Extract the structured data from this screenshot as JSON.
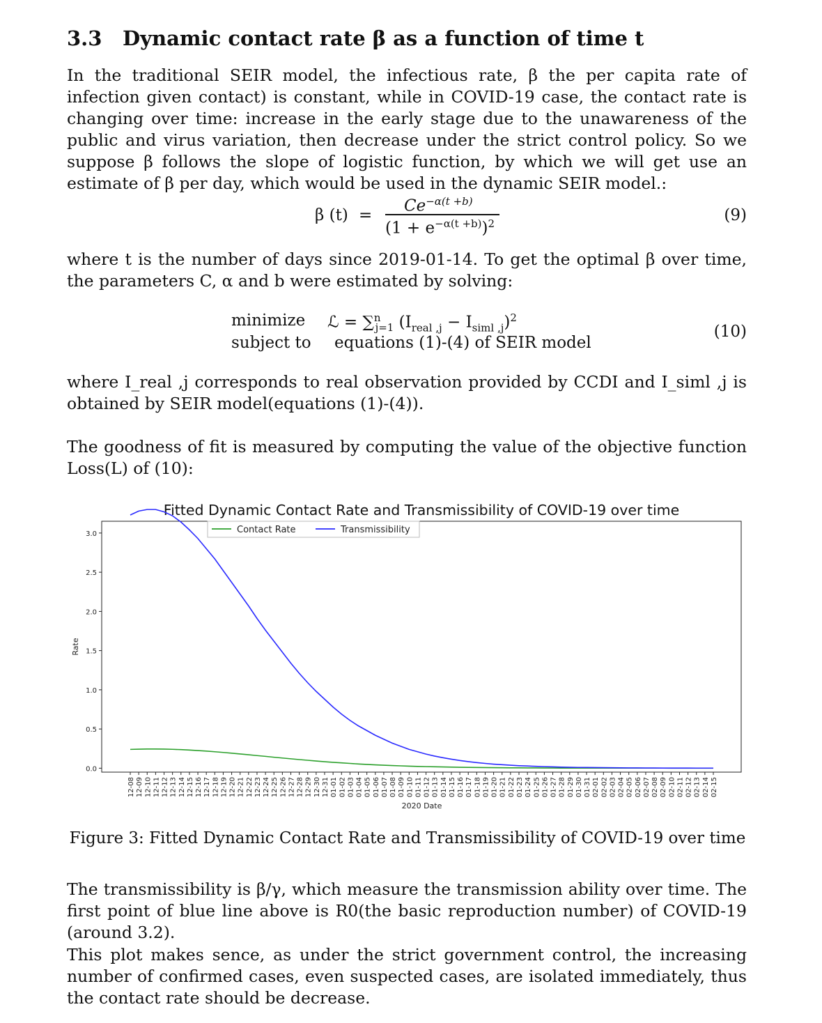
{
  "section": {
    "number": "3.3",
    "title": "Dynamic contact rate β as a function of time t"
  },
  "paragraphs": {
    "p1": "In the traditional SEIR model, the infectious rate, β the per capita rate of infection given contact) is constant, while in COVID-19 case, the contact rate is changing over time: increase in the early stage due to the unawareness of the public and virus variation, then decrease under the strict control policy.  So we suppose β follows the slope of logistic function, by which we will get use an estimate of β per day, which would be used in the dynamic SEIR model.:",
    "p2": "where t is the number of days since 2019-01-14.  To get the optimal β over time, the parameters C, α and b were estimated by solving:",
    "p3": "where I_real ,j corresponds to real observation provided by CCDI and I_siml ,j is obtained by SEIR model(equations (1)-(4)).",
    "p4": "The goodness of fit is measured by computing the value of the objective function Loss(L) of (10):",
    "p5": "The transmissibility is β/γ, which measure the transmission ability over time. The first point of blue line above is R0(the basic reproduction number) of COVID-19 (around 3.2).",
    "p6": "This plot makes sence, as under the strict government control, the increasing number of confirmed cases, even suspected cases, are isolated immediately, thus the contact rate should be decrease."
  },
  "equations": {
    "eq9_lhs": "β (t)",
    "eq9_eq": "=",
    "eq9_num": "Ce",
    "eq9_num_exp": "−α(t +b)",
    "eq9_den": "(1 + e",
    "eq9_den_exp": "−α(t +b)",
    "eq9_den_close": ")",
    "eq9_den_pow": "2",
    "eq9_number": "(9)",
    "eq10_minimize": "minimize",
    "eq10_subject": "subject to",
    "eq10_obj": "ℒ = ∑",
    "eq10_sum_upper": "n",
    "eq10_sum_lower": "j=1",
    "eq10_obj_rest": " (I",
    "eq10_real_sub": "real ,j",
    "eq10_minus": " − I",
    "eq10_siml_sub": "siml ,j",
    "eq10_close": ")",
    "eq10_pow": "2",
    "eq10_constraint": "equations (1)-(4) of SEIR model",
    "eq10_number": "(10)"
  },
  "figure_caption": "Figure 3: Fitted Dynamic Contact Rate and Transmissibility of COVID-19 over time",
  "chart_data": {
    "type": "line",
    "title": "Fitted Dynamic Contact Rate and Transmissibility of COVID-19 over time",
    "xlabel": "2020 Date",
    "ylabel": "Rate",
    "ylim": [
      -0.05,
      3.15
    ],
    "yticks": [
      0.0,
      0.5,
      1.0,
      1.5,
      2.0,
      2.5,
      3.0
    ],
    "ytick_labels": [
      "0.0",
      "0.5",
      "1.0",
      "1.5",
      "2.0",
      "2.5",
      "3.0"
    ],
    "legend_placement": "top-center",
    "grid": false,
    "x": [
      "12-08",
      "12-09",
      "12-10",
      "12-11",
      "12-12",
      "12-13",
      "12-14",
      "12-15",
      "12-16",
      "12-17",
      "12-18",
      "12-19",
      "12-20",
      "12-21",
      "12-22",
      "12-23",
      "12-24",
      "12-25",
      "12-26",
      "12-27",
      "12-28",
      "12-29",
      "12-30",
      "12-31",
      "01-01",
      "01-02",
      "01-03",
      "01-04",
      "01-05",
      "01-06",
      "01-07",
      "01-08",
      "01-09",
      "01-10",
      "01-11",
      "01-12",
      "01-13",
      "01-14",
      "01-15",
      "01-16",
      "01-17",
      "01-18",
      "01-19",
      "01-20",
      "01-21",
      "01-22",
      "01-23",
      "01-24",
      "01-25",
      "01-26",
      "01-27",
      "01-28",
      "01-29",
      "01-30",
      "01-31",
      "02-01",
      "02-02",
      "02-03",
      "02-04",
      "02-05",
      "02-06",
      "02-07",
      "02-08",
      "02-09",
      "02-10",
      "02-11",
      "02-12",
      "02-13",
      "02-14",
      "02-15"
    ],
    "series": [
      {
        "name": "Contact Rate",
        "color": "#2ca02c",
        "values": [
          0.24,
          0.243,
          0.245,
          0.245,
          0.244,
          0.241,
          0.237,
          0.232,
          0.225,
          0.218,
          0.21,
          0.201,
          0.192,
          0.182,
          0.172,
          0.161,
          0.151,
          0.14,
          0.13,
          0.12,
          0.11,
          0.101,
          0.092,
          0.083,
          0.075,
          0.068,
          0.061,
          0.054,
          0.048,
          0.043,
          0.038,
          0.034,
          0.03,
          0.026,
          0.023,
          0.02,
          0.018,
          0.016,
          0.014,
          0.012,
          0.011,
          0.009,
          0.008,
          0.007,
          0.006,
          0.005,
          0.005,
          0.004,
          0.004,
          0.003,
          0.003,
          0.002,
          0.002,
          0.002,
          0.002,
          0.001,
          0.001,
          0.001,
          0.001,
          0.001,
          0.001,
          0.001,
          0.001,
          0.001,
          0.0,
          0.0,
          0.0,
          0.0,
          0.0,
          0.0
        ]
      },
      {
        "name": "Transmissibility",
        "color": "#2a2aff",
        "values": [
          3.23,
          3.28,
          3.3,
          3.3,
          3.27,
          3.22,
          3.14,
          3.04,
          2.93,
          2.8,
          2.67,
          2.52,
          2.37,
          2.22,
          2.07,
          1.91,
          1.76,
          1.62,
          1.48,
          1.34,
          1.21,
          1.09,
          0.98,
          0.88,
          0.78,
          0.69,
          0.61,
          0.54,
          0.48,
          0.42,
          0.37,
          0.32,
          0.28,
          0.24,
          0.21,
          0.18,
          0.155,
          0.134,
          0.115,
          0.098,
          0.084,
          0.072,
          0.061,
          0.052,
          0.045,
          0.038,
          0.032,
          0.028,
          0.024,
          0.02,
          0.017,
          0.014,
          0.012,
          0.01,
          0.009,
          0.008,
          0.007,
          0.006,
          0.005,
          0.004,
          0.004,
          0.003,
          0.003,
          0.002,
          0.002,
          0.002,
          0.002,
          0.001,
          0.001,
          0.001
        ]
      }
    ]
  }
}
